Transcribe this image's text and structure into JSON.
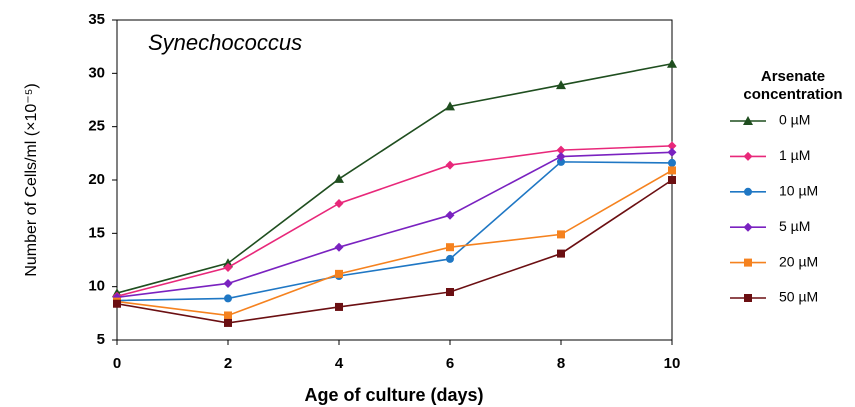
{
  "chart_data": {
    "type": "line",
    "title": "Synechococcus",
    "x_label": "Age of culture (days)",
    "y_label": "Number of Cells/ml (×10⁻⁵)",
    "legend_title": "Arsenate concentration",
    "x": [
      0,
      2,
      4,
      6,
      8,
      10
    ],
    "xlim": [
      0,
      10
    ],
    "xticks": [
      0,
      2,
      4,
      6,
      8,
      10
    ],
    "ylim": [
      5,
      35
    ],
    "yticks": [
      5,
      10,
      15,
      20,
      25,
      30,
      35
    ],
    "legend": "right",
    "series": [
      {
        "name": "0 µM",
        "color": "#1f4e1f",
        "marker": "triangle",
        "values": [
          9.4,
          12.2,
          20.1,
          26.9,
          28.9,
          30.9
        ]
      },
      {
        "name": "1 µM",
        "color": "#e8287a",
        "marker": "diamond",
        "values": [
          9.1,
          11.8,
          17.8,
          21.4,
          22.8,
          23.2
        ]
      },
      {
        "name": "10 µM",
        "color": "#1f77c4",
        "marker": "circle",
        "values": [
          8.7,
          8.9,
          11.0,
          12.6,
          21.7,
          21.6
        ]
      },
      {
        "name": "5 µM",
        "color": "#7a22c0",
        "marker": "diamond",
        "values": [
          9.0,
          10.3,
          13.7,
          16.7,
          22.2,
          22.6
        ]
      },
      {
        "name": "20 µM",
        "color": "#f5821f",
        "marker": "square",
        "values": [
          8.6,
          7.3,
          11.2,
          13.7,
          14.9,
          20.9
        ]
      },
      {
        "name": "50 µM",
        "color": "#6b0f12",
        "marker": "square",
        "values": [
          8.4,
          6.6,
          8.1,
          9.5,
          13.1,
          20.0
        ]
      }
    ]
  }
}
